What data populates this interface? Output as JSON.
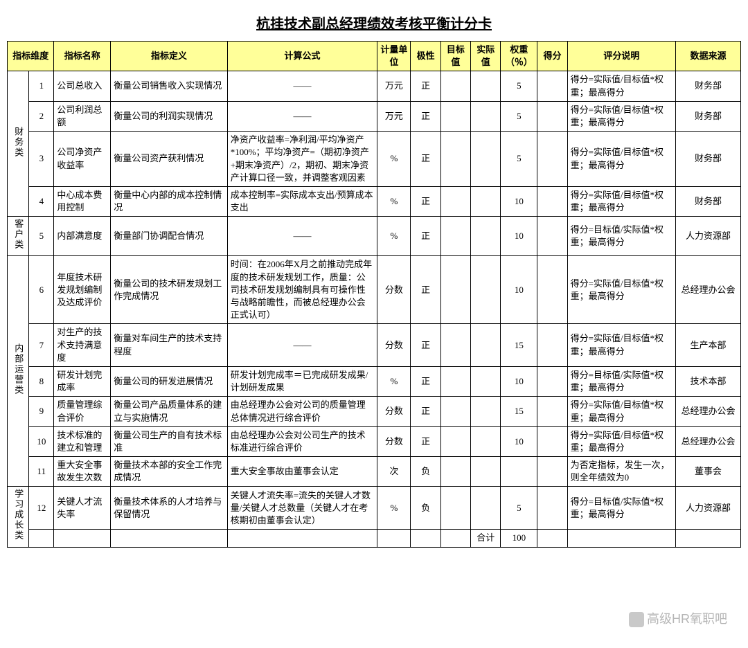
{
  "title": "杭挂技术副总经理绩效考核平衡计分卡",
  "headers": {
    "dim": "指标维度",
    "iname": "指标名称",
    "idef": "指标定义",
    "formula": "计算公式",
    "unit": "计量单位",
    "polarity": "极性",
    "target": "目标值",
    "actual": "实际值",
    "weight": "权重（％）",
    "score": "得分",
    "desc": "评分说明",
    "src": "数据来源"
  },
  "dims": {
    "fin": "财务类",
    "cust": "客户类",
    "ops": "内部运营类",
    "learn": "学习成长类"
  },
  "rows": [
    {
      "n": "1",
      "iname": "公司总收入",
      "idef": "衡量公司销售收入实现情况",
      "formula": "——",
      "unit": "万元",
      "pol": "正",
      "tgt": "",
      "act": "",
      "w": "5",
      "score": "",
      "desc": "得分=实际值/目标值*权重；最高得分",
      "src": "财务部"
    },
    {
      "n": "2",
      "iname": "公司利润总额",
      "idef": "衡量公司的利润实现情况",
      "formula": "——",
      "unit": "万元",
      "pol": "正",
      "tgt": "",
      "act": "",
      "w": "5",
      "score": "",
      "desc": "得分=实际值/目标值*权重；最高得分",
      "src": "财务部"
    },
    {
      "n": "3",
      "iname": "公司净资产收益率",
      "idef": "衡量公司资产获利情况",
      "formula": "净资产收益率=净利润/平均净资产*100%；平均净资产=（期初净资产+期末净资产）/2，期初、期末净资产计算口径一致，并调整客观因素",
      "unit": "%",
      "pol": "正",
      "tgt": "",
      "act": "",
      "w": "5",
      "score": "",
      "desc": "得分=实际值/目标值*权重；最高得分",
      "src": "财务部"
    },
    {
      "n": "4",
      "iname": "中心成本费用控制",
      "idef": "衡量中心内部的成本控制情况",
      "formula": "成本控制率=实际成本支出/预算成本支出",
      "unit": "%",
      "pol": "正",
      "tgt": "",
      "act": "",
      "w": "10",
      "score": "",
      "desc": "得分=实际值/目标值*权重；最高得分",
      "src": "财务部"
    },
    {
      "n": "5",
      "iname": "内部满意度",
      "idef": "衡量部门协调配合情况",
      "formula": "——",
      "unit": "%",
      "pol": "正",
      "tgt": "",
      "act": "",
      "w": "10",
      "score": "",
      "desc": "得分=目标值/实际值*权重；最高得分",
      "src": "人力资源部"
    },
    {
      "n": "6",
      "iname": "年度技术研发规划编制及达成评价",
      "idef": "衡量公司的技术研发规划工作完成情况",
      "formula": "时间：在2006年X月之前推动完成年度的技术研发规划工作，质量：公司技术研发规划编制具有可操作性与战略前瞻性，而被总经理办公会正式认可）",
      "unit": "分数",
      "pol": "正",
      "tgt": "",
      "act": "",
      "w": "10",
      "score": "",
      "desc": "得分=实际值/目标值*权重；最高得分",
      "src": "总经理办公会"
    },
    {
      "n": "7",
      "iname": "对生产的技术支持满意度",
      "idef": "衡量对车间生产的技术支持程度",
      "formula": "——",
      "unit": "分数",
      "pol": "正",
      "tgt": "",
      "act": "",
      "w": "15",
      "score": "",
      "desc": "得分=实际值/目标值*权重；最高得分",
      "src": "生产本部"
    },
    {
      "n": "8",
      "iname": "研发计划完成率",
      "idef": "衡量公司的研发进展情况",
      "formula": "研发计划完成率＝已完成研发成果/计划研发成果",
      "unit": "%",
      "pol": "正",
      "tgt": "",
      "act": "",
      "w": "10",
      "score": "",
      "desc": "得分=目标值/实际值*权重；最高得分",
      "src": "技术本部"
    },
    {
      "n": "9",
      "iname": "质量管理综合评价",
      "idef": "衡量公司产品质量体系的建立与实施情况",
      "formula": "由总经理办公会对公司的质量管理总体情况进行综合评价",
      "unit": "分数",
      "pol": "正",
      "tgt": "",
      "act": "",
      "w": "15",
      "score": "",
      "desc": "得分=实际值/目标值*权重；最高得分",
      "src": "总经理办公会"
    },
    {
      "n": "10",
      "iname": "技术标准的建立和管理",
      "idef": "衡量公司生产的自有技术标准",
      "formula": "由总经理办公会对公司生产的技术标准进行综合评价",
      "unit": "分数",
      "pol": "正",
      "tgt": "",
      "act": "",
      "w": "10",
      "score": "",
      "desc": "得分=实际值/目标值*权重；最高得分",
      "src": "总经理办公会"
    },
    {
      "n": "11",
      "iname": "重大安全事故发生次数",
      "idef": "衡量技术本部的安全工作完成情况",
      "formula": "重大安全事故由董事会认定",
      "unit": "次",
      "pol": "负",
      "tgt": "",
      "act": "",
      "w": "",
      "score": "",
      "desc": "为否定指标，发生一次，则全年绩效为0",
      "src": "董事会"
    },
    {
      "n": "12",
      "iname": "关键人才流失率",
      "idef": "衡量技术体系的人才培养与保留情况",
      "formula": "关键人才流失率=流失的关键人才数量/关键人才总数量（关键人才在考核期初由董事会认定）",
      "unit": "%",
      "pol": "负",
      "tgt": "",
      "act": "",
      "w": "5",
      "score": "",
      "desc": "得分=目标值/实际值*权重；最高得分",
      "src": "人力资源部"
    }
  ],
  "total": {
    "label": "合计",
    "value": "100"
  },
  "watermark": "高级HR氧职吧"
}
